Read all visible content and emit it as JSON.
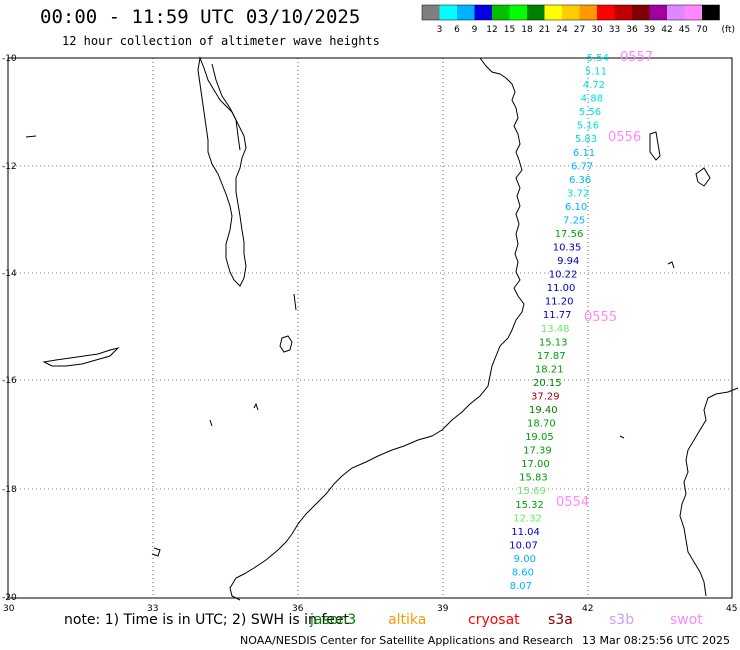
{
  "header": {
    "title": "00:00 - 11:59 UTC 03/10/2025",
    "subtitle": "12 hour collection of altimeter wave heights"
  },
  "color_scale": {
    "labels": [
      "3",
      "6",
      "9",
      "12",
      "15",
      "18",
      "21",
      "24",
      "27",
      "30",
      "33",
      "36",
      "39",
      "42",
      "45",
      "70"
    ],
    "unit": "(ft)",
    "colors": [
      "#7f7f7f",
      "#00ffff",
      "#00b2ff",
      "#0000e0",
      "#00c000",
      "#00ff00",
      "#008000",
      "#ffff00",
      "#ffcc00",
      "#ff9900",
      "#ff0000",
      "#c00000",
      "#800000",
      "#a000a0",
      "#dd88ff",
      "#ff88ff",
      "#000000"
    ]
  },
  "map": {
    "lat_ticks": [
      "-10",
      "-12",
      "-14",
      "-16",
      "-18",
      "-20"
    ],
    "lon_ticks": [
      "30",
      "33",
      "36",
      "39",
      "42",
      "45"
    ],
    "pass_labels": [
      {
        "text": "0557",
        "color": "#ff88ff"
      },
      {
        "text": "0556",
        "color": "#ff88ff"
      },
      {
        "text": "0555",
        "color": "#ff88ff"
      },
      {
        "text": "0554",
        "color": "#ff88ff"
      }
    ],
    "wave_heights": [
      {
        "value": "5.54",
        "color": "#00e0e0"
      },
      {
        "value": "5.11",
        "color": "#00e0e0"
      },
      {
        "value": "4.72",
        "color": "#00e0e0"
      },
      {
        "value": "4.88",
        "color": "#00e0e0"
      },
      {
        "value": "5.56",
        "color": "#00e0e0"
      },
      {
        "value": "5.16",
        "color": "#00e0e0"
      },
      {
        "value": "5.83",
        "color": "#00e0e0"
      },
      {
        "value": "6.11",
        "color": "#00b2ff"
      },
      {
        "value": "6.77",
        "color": "#00b2ff"
      },
      {
        "value": "6.36",
        "color": "#00b2ff"
      },
      {
        "value": "3.72",
        "color": "#00e0e0"
      },
      {
        "value": "6.10",
        "color": "#00b2ff"
      },
      {
        "value": "7.25",
        "color": "#00b2ff"
      },
      {
        "value": "17.56",
        "color": "#00a000"
      },
      {
        "value": "10.35",
        "color": "#0000c0"
      },
      {
        "value": "9.94",
        "color": "#0000c0"
      },
      {
        "value": "10.22",
        "color": "#0000c0"
      },
      {
        "value": "11.00",
        "color": "#0000c0"
      },
      {
        "value": "11.20",
        "color": "#0000c0"
      },
      {
        "value": "11.77",
        "color": "#0000c0"
      },
      {
        "value": "13.48",
        "color": "#66ee66"
      },
      {
        "value": "15.13",
        "color": "#00a000"
      },
      {
        "value": "17.87",
        "color": "#00a000"
      },
      {
        "value": "18.21",
        "color": "#00a000"
      },
      {
        "value": "20.15",
        "color": "#008000"
      },
      {
        "value": "37.29",
        "color": "#900000"
      },
      {
        "value": "19.40",
        "color": "#008000"
      },
      {
        "value": "18.70",
        "color": "#00a000"
      },
      {
        "value": "19.05",
        "color": "#00a000"
      },
      {
        "value": "17.39",
        "color": "#00a000"
      },
      {
        "value": "17.00",
        "color": "#00a000"
      },
      {
        "value": "15.83",
        "color": "#00a000"
      },
      {
        "value": "15.69",
        "color": "#66ee66"
      },
      {
        "value": "15.32",
        "color": "#00a000"
      },
      {
        "value": "12.32",
        "color": "#66ee66"
      },
      {
        "value": "11.04",
        "color": "#0000c0"
      },
      {
        "value": "10.07",
        "color": "#0000c0"
      },
      {
        "value": "9.00",
        "color": "#00b2ff"
      },
      {
        "value": "8.60",
        "color": "#00b2ff"
      },
      {
        "value": "8.07",
        "color": "#00b2ff"
      }
    ]
  },
  "note": {
    "prefix": "note: 1) Time is in UTC; 2) SWH is in feet",
    "satellites": [
      {
        "name": "jason3",
        "color": "#008000"
      },
      {
        "name": "altika",
        "color": "#ff9900"
      },
      {
        "name": "cryosat",
        "color": "#ff0000"
      },
      {
        "name": "s3a",
        "color": "#800000"
      },
      {
        "name": "s3b",
        "color": "#c8a0ff"
      },
      {
        "name": "swot",
        "color": "#ff88ff"
      }
    ]
  },
  "footer": {
    "credit": "NOAA/NESDIS Center for Satellite Applications and Research",
    "timestamp": "13 Mar 08:25:56 UTC 2025"
  }
}
